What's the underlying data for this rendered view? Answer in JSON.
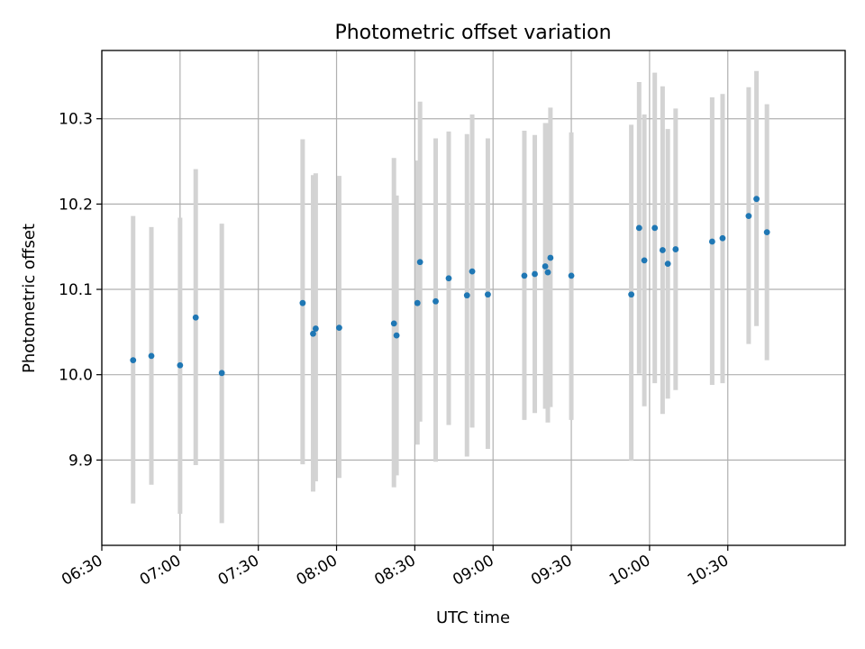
{
  "chart_data": {
    "type": "scatter",
    "title": "Photometric offset variation",
    "xlabel": "UTC time",
    "ylabel": "Photometric offset",
    "grid": true,
    "xlim": [
      "06:30",
      "11:15"
    ],
    "ylim": [
      9.8,
      10.38
    ],
    "x_ticks": [
      "06:30",
      "07:00",
      "07:30",
      "08:00",
      "08:30",
      "09:00",
      "09:30",
      "10:00",
      "10:30"
    ],
    "y_ticks": [
      9.9,
      10.0,
      10.1,
      10.2,
      10.3
    ],
    "point_color": "#1f77b4",
    "errorbar_color": "#d3d3d3",
    "points": [
      {
        "x": "06:42",
        "y": 10.017,
        "low": 9.849,
        "high": 10.186
      },
      {
        "x": "06:49",
        "y": 10.022,
        "low": 9.871,
        "high": 10.173
      },
      {
        "x": "07:00",
        "y": 10.011,
        "low": 9.837,
        "high": 10.184
      },
      {
        "x": "07:06",
        "y": 10.067,
        "low": 9.894,
        "high": 10.241
      },
      {
        "x": "07:16",
        "y": 10.002,
        "low": 9.826,
        "high": 10.177
      },
      {
        "x": "07:47",
        "y": 10.084,
        "low": 9.895,
        "high": 10.276
      },
      {
        "x": "07:51",
        "y": 10.048,
        "low": 9.863,
        "high": 10.234
      },
      {
        "x": "07:52",
        "y": 10.054,
        "low": 9.875,
        "high": 10.236
      },
      {
        "x": "08:01",
        "y": 10.055,
        "low": 9.879,
        "high": 10.233
      },
      {
        "x": "08:22",
        "y": 10.06,
        "low": 9.868,
        "high": 10.254
      },
      {
        "x": "08:23",
        "y": 10.046,
        "low": 9.882,
        "high": 10.21
      },
      {
        "x": "08:31",
        "y": 10.084,
        "low": 9.918,
        "high": 10.251
      },
      {
        "x": "08:32",
        "y": 10.132,
        "low": 9.945,
        "high": 10.32
      },
      {
        "x": "08:38",
        "y": 10.086,
        "low": 9.898,
        "high": 10.277
      },
      {
        "x": "08:43",
        "y": 10.113,
        "low": 9.941,
        "high": 10.285
      },
      {
        "x": "08:50",
        "y": 10.093,
        "low": 9.904,
        "high": 10.282
      },
      {
        "x": "08:52",
        "y": 10.121,
        "low": 9.938,
        "high": 10.305
      },
      {
        "x": "08:58",
        "y": 10.094,
        "low": 9.913,
        "high": 10.277
      },
      {
        "x": "09:12",
        "y": 10.116,
        "low": 9.947,
        "high": 10.286
      },
      {
        "x": "09:16",
        "y": 10.118,
        "low": 9.955,
        "high": 10.281
      },
      {
        "x": "09:20",
        "y": 10.127,
        "low": 9.96,
        "high": 10.295
      },
      {
        "x": "09:21",
        "y": 10.12,
        "low": 9.944,
        "high": 10.295
      },
      {
        "x": "09:22",
        "y": 10.137,
        "low": 9.962,
        "high": 10.313
      },
      {
        "x": "09:30",
        "y": 10.116,
        "low": 9.947,
        "high": 10.284
      },
      {
        "x": "09:53",
        "y": 10.094,
        "low": 9.899,
        "high": 10.293
      },
      {
        "x": "09:56",
        "y": 10.172,
        "low": 10.001,
        "high": 10.343
      },
      {
        "x": "09:58",
        "y": 10.134,
        "low": 9.963,
        "high": 10.305
      },
      {
        "x": "10:02",
        "y": 10.172,
        "low": 9.99,
        "high": 10.354
      },
      {
        "x": "10:05",
        "y": 10.146,
        "low": 9.954,
        "high": 10.338
      },
      {
        "x": "10:07",
        "y": 10.13,
        "low": 9.972,
        "high": 10.288
      },
      {
        "x": "10:10",
        "y": 10.147,
        "low": 9.982,
        "high": 10.312
      },
      {
        "x": "10:24",
        "y": 10.156,
        "low": 9.988,
        "high": 10.325
      },
      {
        "x": "10:28",
        "y": 10.16,
        "low": 9.99,
        "high": 10.329
      },
      {
        "x": "10:38",
        "y": 10.186,
        "low": 10.036,
        "high": 10.337
      },
      {
        "x": "10:41",
        "y": 10.206,
        "low": 10.057,
        "high": 10.356
      },
      {
        "x": "10:45",
        "y": 10.167,
        "low": 10.017,
        "high": 10.317
      }
    ]
  }
}
